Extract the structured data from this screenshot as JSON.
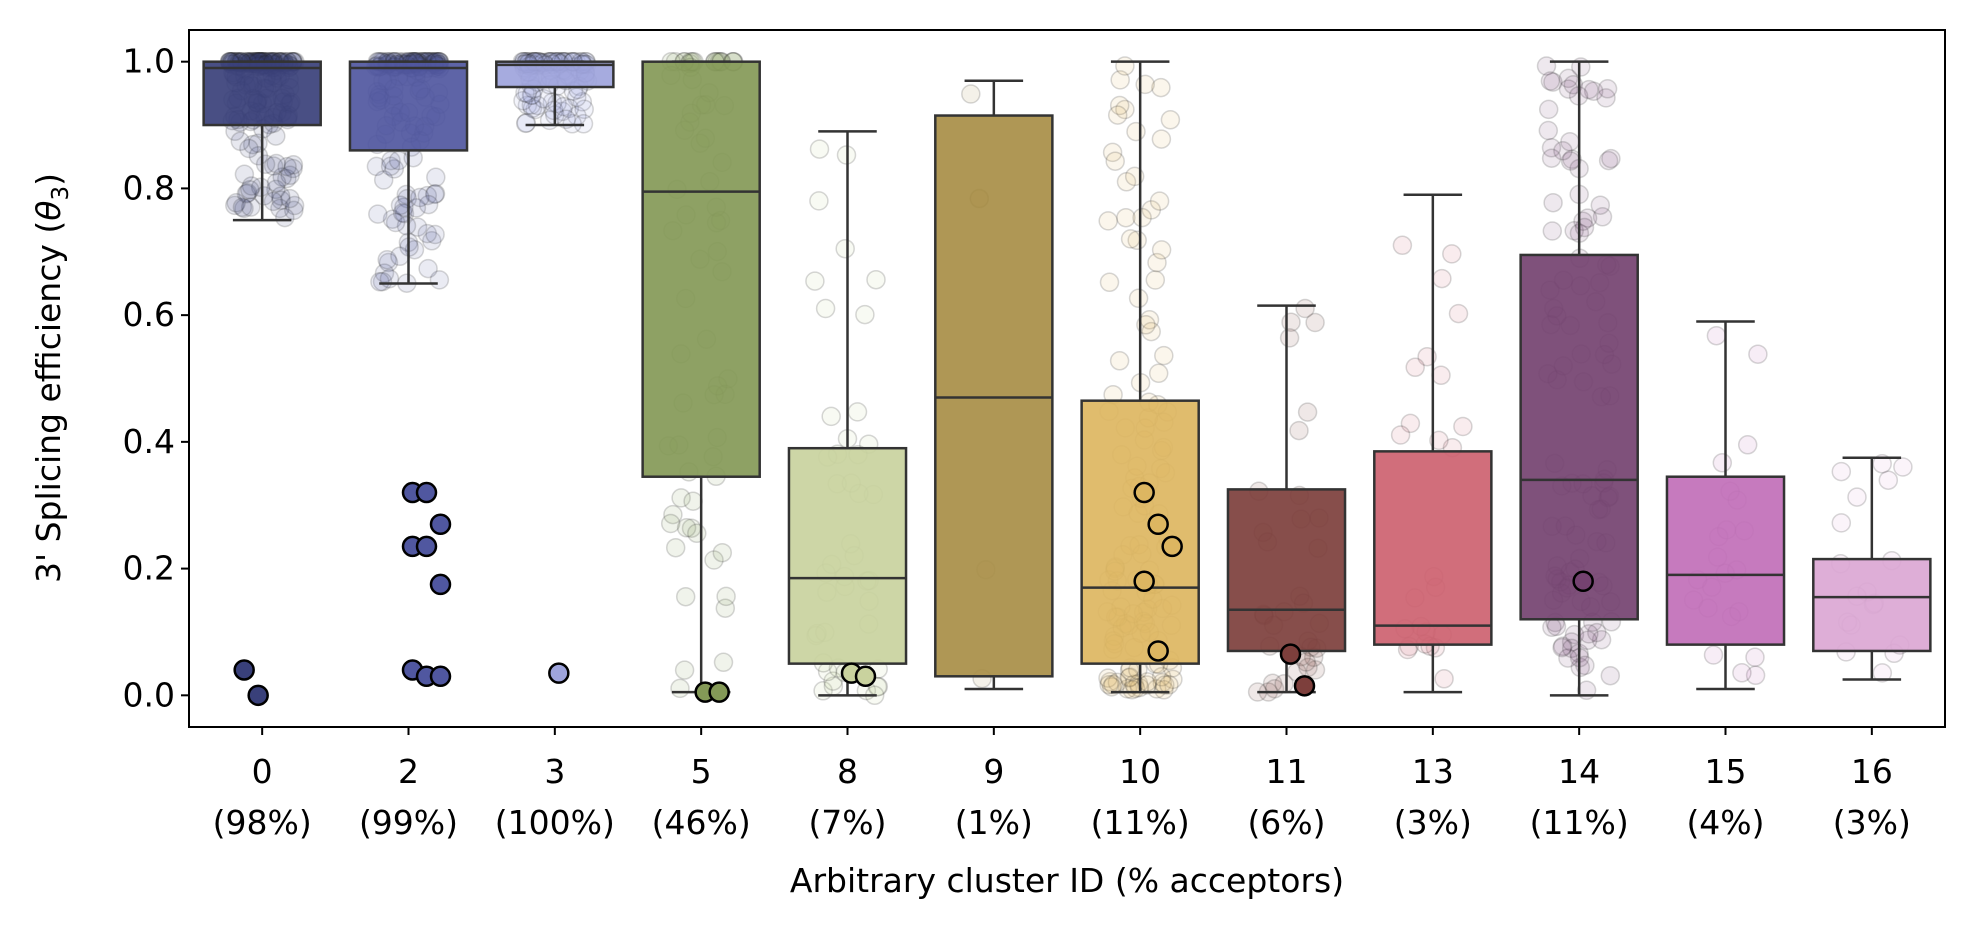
{
  "chart_data": {
    "type": "box",
    "title": "",
    "xlabel": "Arbitrary cluster ID (% acceptors)",
    "ylabel_main": "3' Splicing efficiency (",
    "ylabel_theta": "θ",
    "ylabel_sub": "3",
    "ylabel_close": ")",
    "ylim": [
      -0.05,
      1.05
    ],
    "yticks": [
      "0.0",
      "0.2",
      "0.4",
      "0.6",
      "0.8",
      "1.0"
    ],
    "categories": [
      {
        "id": "0",
        "pct": "(98%)",
        "color": "#39407a",
        "q1": 0.9,
        "median": 0.99,
        "q3": 1.0,
        "whislo": 0.75,
        "whishi": 1.0,
        "highlights": [
          0.04,
          0.0
        ]
      },
      {
        "id": "2",
        "pct": "(99%)",
        "color": "#5057a0",
        "q1": 0.86,
        "median": 0.99,
        "q3": 1.0,
        "whislo": 0.65,
        "whishi": 1.0,
        "highlights": [
          0.32,
          0.32,
          0.27,
          0.235,
          0.235,
          0.175,
          0.04,
          0.03,
          0.03
        ]
      },
      {
        "id": "3",
        "pct": "(100%)",
        "color": "#9ea4dc",
        "q1": 0.96,
        "median": 0.995,
        "q3": 1.0,
        "whislo": 0.9,
        "whishi": 1.0,
        "highlights": [
          0.035
        ]
      },
      {
        "id": "5",
        "pct": "(46%)",
        "color": "#849957",
        "q1": 0.345,
        "median": 0.795,
        "q3": 1.0,
        "whislo": 0.005,
        "whishi": 1.0,
        "highlights": [
          0.005,
          0.005
        ]
      },
      {
        "id": "8",
        "pct": "(7%)",
        "color": "#c9d29e",
        "q1": 0.05,
        "median": 0.185,
        "q3": 0.39,
        "whislo": 0.0,
        "whishi": 0.89,
        "highlights": [
          0.035,
          0.03
        ]
      },
      {
        "id": "9",
        "pct": "(1%)",
        "color": "#a88e47",
        "q1": 0.03,
        "median": 0.47,
        "q3": 0.915,
        "whislo": 0.01,
        "whishi": 0.97,
        "highlights": []
      },
      {
        "id": "10",
        "pct": "(11%)",
        "color": "#ddb661",
        "q1": 0.05,
        "median": 0.17,
        "q3": 0.465,
        "whislo": 0.005,
        "whishi": 1.0,
        "highlights": [
          0.32,
          0.27,
          0.235,
          0.18,
          0.07
        ]
      },
      {
        "id": "11",
        "pct": "(6%)",
        "color": "#7d3f3c",
        "q1": 0.07,
        "median": 0.135,
        "q3": 0.325,
        "whislo": 0.005,
        "whishi": 0.615,
        "highlights": [
          0.065,
          0.015
        ]
      },
      {
        "id": "13",
        "pct": "(3%)",
        "color": "#cd6270",
        "q1": 0.08,
        "median": 0.11,
        "q3": 0.385,
        "whislo": 0.005,
        "whishi": 0.79,
        "highlights": []
      },
      {
        "id": "14",
        "pct": "(11%)",
        "color": "#744270",
        "q1": 0.12,
        "median": 0.34,
        "q3": 0.695,
        "whislo": 0.0,
        "whishi": 1.0,
        "highlights": [
          0.18
        ]
      },
      {
        "id": "15",
        "pct": "(4%)",
        "color": "#c16fb8",
        "q1": 0.08,
        "median": 0.19,
        "q3": 0.345,
        "whislo": 0.01,
        "whishi": 0.59,
        "highlights": []
      },
      {
        "id": "16",
        "pct": "(3%)",
        "color": "#dba7d4",
        "q1": 0.07,
        "median": 0.155,
        "q3": 0.215,
        "whislo": 0.025,
        "whishi": 0.375,
        "highlights": []
      }
    ],
    "jitter_counts": [
      180,
      160,
      110,
      70,
      45,
      5,
      130,
      35,
      25,
      110,
      22,
      18
    ]
  }
}
